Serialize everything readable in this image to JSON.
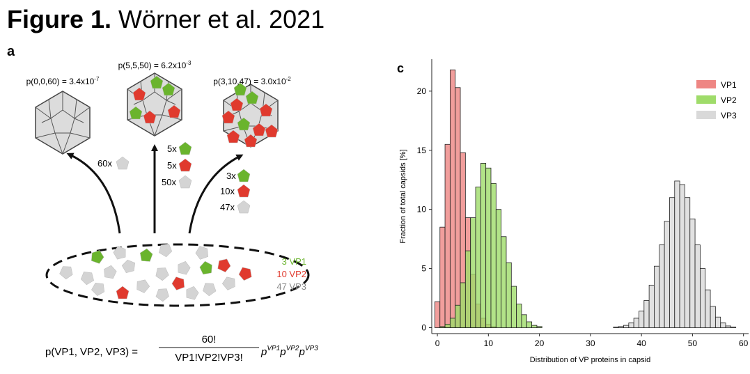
{
  "header": {
    "title_bold": "Figure 1.",
    "title_rest": "Wörner et al. 2021"
  },
  "panel_a": {
    "label": "a",
    "probabilities": [
      {
        "text": "p(0,0,60) = 3.4x10",
        "exponent": "-7"
      },
      {
        "text": "p(5,5,50) = 6.2x10",
        "exponent": "-3"
      },
      {
        "text": "p(3,10,47) = 3.0x10",
        "exponent": "-2"
      }
    ],
    "counts": [
      "60x",
      "5x",
      "5x",
      "50x",
      "3x",
      "10x",
      "47x"
    ],
    "legend": [
      "3 VP1",
      "10 VP2",
      "47 VP3"
    ],
    "formula": {
      "lhs": "p(VP1, VP2, VP3) =",
      "numerator": "60!",
      "denominator": "VP1!VP2!VP3!",
      "factors": [
        {
          "base": "p",
          "exponent": "VP1"
        },
        {
          "base": "p",
          "exponent": "VP2"
        },
        {
          "base": "p",
          "exponent": "VP3"
        }
      ]
    }
  },
  "chart_data": {
    "type": "histogram",
    "panel_label": "c",
    "x_label": "Distribution of VP proteins in capsid",
    "y_label": "Fraction of total capsids [%]",
    "bins": [
      -0.5,
      0.5,
      1.5,
      2.5,
      3.5,
      4.5,
      5.5,
      6.5,
      7.5,
      8.5,
      9.5,
      10.5,
      11.5,
      12.5,
      13.5,
      14.5,
      15.5,
      16.5,
      17.5,
      18.5,
      19.5,
      20.5,
      21.5,
      22.5,
      23.5,
      24.5,
      25.5,
      26.5,
      27.5,
      28.5,
      29.5,
      30.5,
      31.5,
      32.5,
      33.5,
      34.5,
      35.5,
      36.5,
      37.5,
      38.5,
      39.5,
      40.5,
      41.5,
      42.5,
      43.5,
      44.5,
      45.5,
      46.5,
      47.5,
      48.5,
      49.5,
      50.5,
      51.5,
      52.5,
      53.5,
      54.5,
      55.5,
      56.5,
      57.5,
      58.5,
      59.5
    ],
    "series": [
      {
        "name": "VP1",
        "color": "#ee8683",
        "values": [
          2.2,
          8.5,
          15.5,
          21.8,
          20.3,
          14.8,
          9.3,
          4.5,
          2,
          0.8,
          0.3,
          0.1,
          0,
          0,
          0,
          0,
          0,
          0,
          0,
          0,
          0,
          0,
          0,
          0,
          0,
          0,
          0,
          0,
          0,
          0,
          0,
          0,
          0,
          0,
          0,
          0,
          0,
          0,
          0,
          0,
          0,
          0,
          0,
          0,
          0,
          0,
          0,
          0,
          0,
          0,
          0,
          0,
          0,
          0,
          0,
          0,
          0,
          0,
          0,
          0
        ]
      },
      {
        "name": "VP2",
        "color": "#9fdc6a",
        "values": [
          0,
          0.1,
          0.3,
          0.8,
          1.9,
          3.8,
          6.5,
          9.3,
          11.9,
          13.9,
          13.5,
          12.2,
          10,
          7.7,
          5.5,
          3.5,
          2,
          1.1,
          0.5,
          0.2,
          0.1,
          0,
          0,
          0,
          0,
          0,
          0,
          0,
          0,
          0,
          0,
          0,
          0,
          0,
          0,
          0,
          0,
          0,
          0,
          0,
          0,
          0,
          0,
          0,
          0,
          0,
          0,
          0,
          0,
          0,
          0,
          0,
          0,
          0,
          0,
          0,
          0,
          0,
          0,
          0
        ]
      },
      {
        "name": "VP3",
        "color": "#d9d9d9",
        "values": [
          0,
          0,
          0,
          0,
          0,
          0,
          0,
          0,
          0,
          0,
          0,
          0,
          0,
          0,
          0,
          0,
          0,
          0,
          0,
          0,
          0,
          0,
          0,
          0,
          0,
          0,
          0,
          0,
          0,
          0,
          0,
          0,
          0,
          0,
          0,
          0.05,
          0.1,
          0.2,
          0.4,
          0.8,
          1.4,
          2.3,
          3.6,
          5.2,
          7,
          9,
          11,
          12.4,
          12.1,
          11,
          9.2,
          7,
          5,
          3.2,
          1.8,
          0.9,
          0.4,
          0.15,
          0.05,
          0
        ]
      }
    ],
    "xlim": [
      -1.1,
      61
    ],
    "xticks": [
      0,
      10,
      20,
      30,
      40,
      50,
      60
    ],
    "ylim": [
      -0.5,
      22.7
    ],
    "yticks": [
      0,
      5,
      10,
      15,
      20
    ],
    "legend_position": "upper right"
  }
}
